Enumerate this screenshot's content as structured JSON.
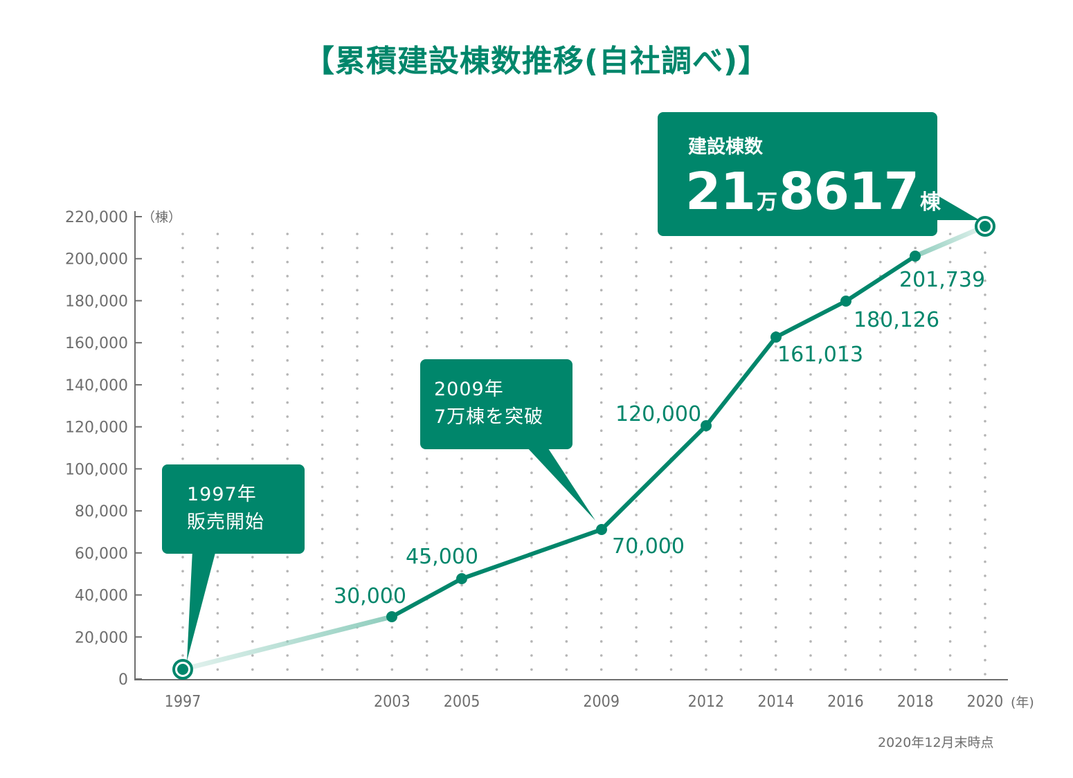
{
  "title": "【累積建設棟数推移(自社調べ)】",
  "colors": {
    "accent": "#00866b",
    "accent_light": "#8fcdbd",
    "axis": "#6e6e6e",
    "grid": "#b5b5b5"
  },
  "axis": {
    "y_unit": "（棟）",
    "x_unit": "(年)",
    "y_ticks": [
      "0",
      "20,000",
      "40,000",
      "60,000",
      "80,000",
      "100,000",
      "120,000",
      "140,000",
      "160,000",
      "180,000",
      "200,000",
      "220,000"
    ],
    "x_tick_labels": [
      "1997",
      "2003",
      "2005",
      "2009",
      "2012",
      "2014",
      "2016",
      "2018",
      "2020"
    ]
  },
  "callouts": {
    "start": {
      "line1": "1997年",
      "line2": "販売開始"
    },
    "milestone": {
      "line1": "2009年",
      "line2": "7万棟を突破"
    },
    "total": {
      "label": "建設棟数",
      "num1": "21",
      "unit1": "万",
      "num2": "8617",
      "unit2": "棟"
    }
  },
  "data_labels": {
    "2003": "30,000",
    "2005": "45,000",
    "2009": "70,000",
    "2012": "120,000",
    "2014": "161,013",
    "2016": "180,126",
    "2018": "201,739"
  },
  "note": "2020年12月末時点",
  "chart_data": {
    "type": "line",
    "title": "累積建設棟数推移(自社調べ)",
    "xlabel": "年",
    "ylabel": "棟",
    "ylim": [
      0,
      220000
    ],
    "grid": "vertical dotted lines per year",
    "x": [
      1997,
      2003,
      2005,
      2009,
      2012,
      2014,
      2016,
      2018,
      2020
    ],
    "series": [
      {
        "name": "累積建設棟数",
        "values": [
          5000,
          30000,
          45000,
          70000,
          120000,
          161013,
          180126,
          201739,
          218617
        ]
      }
    ],
    "annotations": [
      {
        "x": 1997,
        "text": "1997年 販売開始"
      },
      {
        "x": 2009,
        "text": "2009年 7万棟を突破"
      },
      {
        "x": 2020,
        "text": "建設棟数 21万8617棟"
      }
    ],
    "footnote": "2020年12月末時点"
  }
}
